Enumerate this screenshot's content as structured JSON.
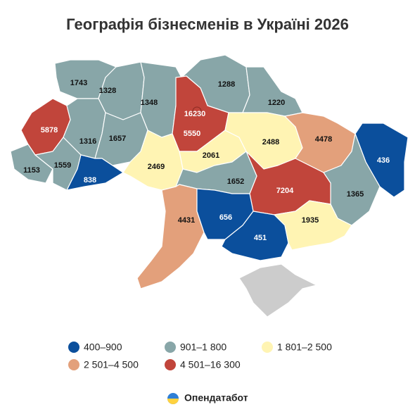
{
  "title": "Географія бізнесменів в Україні 2026",
  "regions": [
    {
      "value": 1743,
      "color": "#88a6a8"
    },
    {
      "value": 1328,
      "color": "#88a6a8"
    },
    {
      "value": 1348,
      "color": "#88a6a8"
    },
    {
      "value": 1288,
      "color": "#88a6a8"
    },
    {
      "value": 1220,
      "color": "#88a6a8"
    },
    {
      "value": 5550,
      "color": "#c1453b"
    },
    {
      "value": 5878,
      "color": "#c1453b"
    },
    {
      "value": 1316,
      "color": "#88a6a8"
    },
    {
      "value": 1657,
      "color": "#88a6a8"
    },
    {
      "value": 1153,
      "color": "#88a6a8"
    },
    {
      "value": 1559,
      "color": "#88a6a8"
    },
    {
      "value": 838,
      "color": "#0b4f9c"
    },
    {
      "value": 2469,
      "color": "#fff4b3"
    },
    {
      "value": 2061,
      "color": "#fff4b3"
    },
    {
      "value": 2488,
      "color": "#fff4b3"
    },
    {
      "value": 4478,
      "color": "#e3a07b"
    },
    {
      "value": 436,
      "color": "#0b4f9c"
    },
    {
      "value": 1365,
      "color": "#88a6a8"
    },
    {
      "value": 7204,
      "color": "#c1453b"
    },
    {
      "value": 1652,
      "color": "#88a6a8"
    },
    {
      "value": 4431,
      "color": "#e3a07b"
    },
    {
      "value": 656,
      "color": "#0b4f9c"
    },
    {
      "value": 451,
      "color": "#0b4f9c"
    },
    {
      "value": 1935,
      "color": "#fff4b3"
    },
    {
      "value": 16230,
      "color": "#c1453b"
    }
  ],
  "legend": [
    {
      "label": "400–900",
      "color": "#0b4f9c"
    },
    {
      "label": "901–1 800",
      "color": "#88a6a8"
    },
    {
      "label": "1 801–2 500",
      "color": "#fff4b3"
    },
    {
      "label": "2 501–4 500",
      "color": "#e3a07b"
    },
    {
      "label": "4 501–16 300",
      "color": "#c1453b"
    }
  ],
  "logo": "Опендатабот"
}
